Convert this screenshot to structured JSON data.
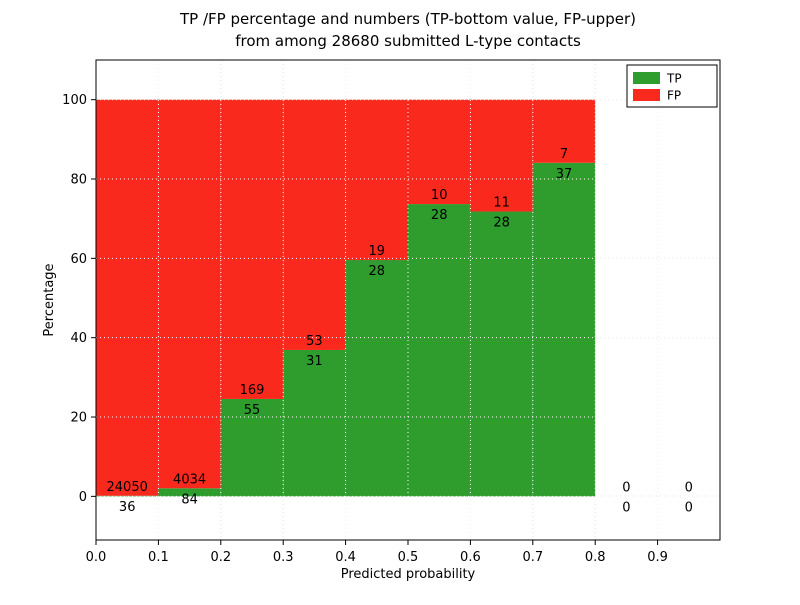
{
  "page": {
    "background": "#ffffff"
  },
  "chart_data": {
    "type": "bar",
    "stacked": true,
    "title_line1": "TP /FP percentage and numbers (TP-bottom value, FP-upper)",
    "title_line2": "from among 28680 submitted L-type contacts",
    "xlabel": "Predicted probability",
    "ylabel": "Percentage",
    "total_contacts": 28680,
    "xlim": [
      0.0,
      1.0
    ],
    "ylim": [
      -11,
      110
    ],
    "xticks": [
      "0.0",
      "0.1",
      "0.2",
      "0.3",
      "0.4",
      "0.5",
      "0.6",
      "0.7",
      "0.8",
      "0.9"
    ],
    "xtick_values": [
      0.0,
      0.1,
      0.2,
      0.3,
      0.4,
      0.5,
      0.6,
      0.7,
      0.8,
      0.9
    ],
    "yticks": [
      "0",
      "20",
      "40",
      "60",
      "80",
      "100"
    ],
    "ytick_values": [
      0,
      20,
      40,
      60,
      80,
      100
    ],
    "grid": true,
    "colors": {
      "tp": "#2e9d2e",
      "fp": "#fa291e",
      "grid_over_bars": "#ffffff",
      "grid_on_bg": "#8c8c8c",
      "frame": "#000000"
    },
    "series": [
      {
        "name": "TP",
        "color": "#2e9d2e"
      },
      {
        "name": "FP",
        "color": "#fa291e"
      }
    ],
    "bins": [
      {
        "x_start": 0.0,
        "x_end": 0.1,
        "tp": 36,
        "fp": 24050
      },
      {
        "x_start": 0.1,
        "x_end": 0.2,
        "tp": 84,
        "fp": 4034
      },
      {
        "x_start": 0.2,
        "x_end": 0.3,
        "tp": 55,
        "fp": 169
      },
      {
        "x_start": 0.3,
        "x_end": 0.4,
        "tp": 31,
        "fp": 53
      },
      {
        "x_start": 0.4,
        "x_end": 0.5,
        "tp": 28,
        "fp": 19
      },
      {
        "x_start": 0.5,
        "x_end": 0.6,
        "tp": 28,
        "fp": 10
      },
      {
        "x_start": 0.6,
        "x_end": 0.7,
        "tp": 28,
        "fp": 11
      },
      {
        "x_start": 0.7,
        "x_end": 0.8,
        "tp": 37,
        "fp": 7
      },
      {
        "x_start": 0.8,
        "x_end": 0.9,
        "tp": 0,
        "fp": 0
      },
      {
        "x_start": 0.9,
        "x_end": 1.0,
        "tp": 0,
        "fp": 0
      }
    ],
    "tp_percentages": [
      0.15,
      2.04,
      24.55,
      36.9,
      59.57,
      73.68,
      71.79,
      84.09,
      0,
      0
    ],
    "legend": {
      "position": "upper right",
      "entries": [
        {
          "label": "TP",
          "color": "#2e9d2e"
        },
        {
          "label": "FP",
          "color": "#fa291e"
        }
      ]
    }
  }
}
